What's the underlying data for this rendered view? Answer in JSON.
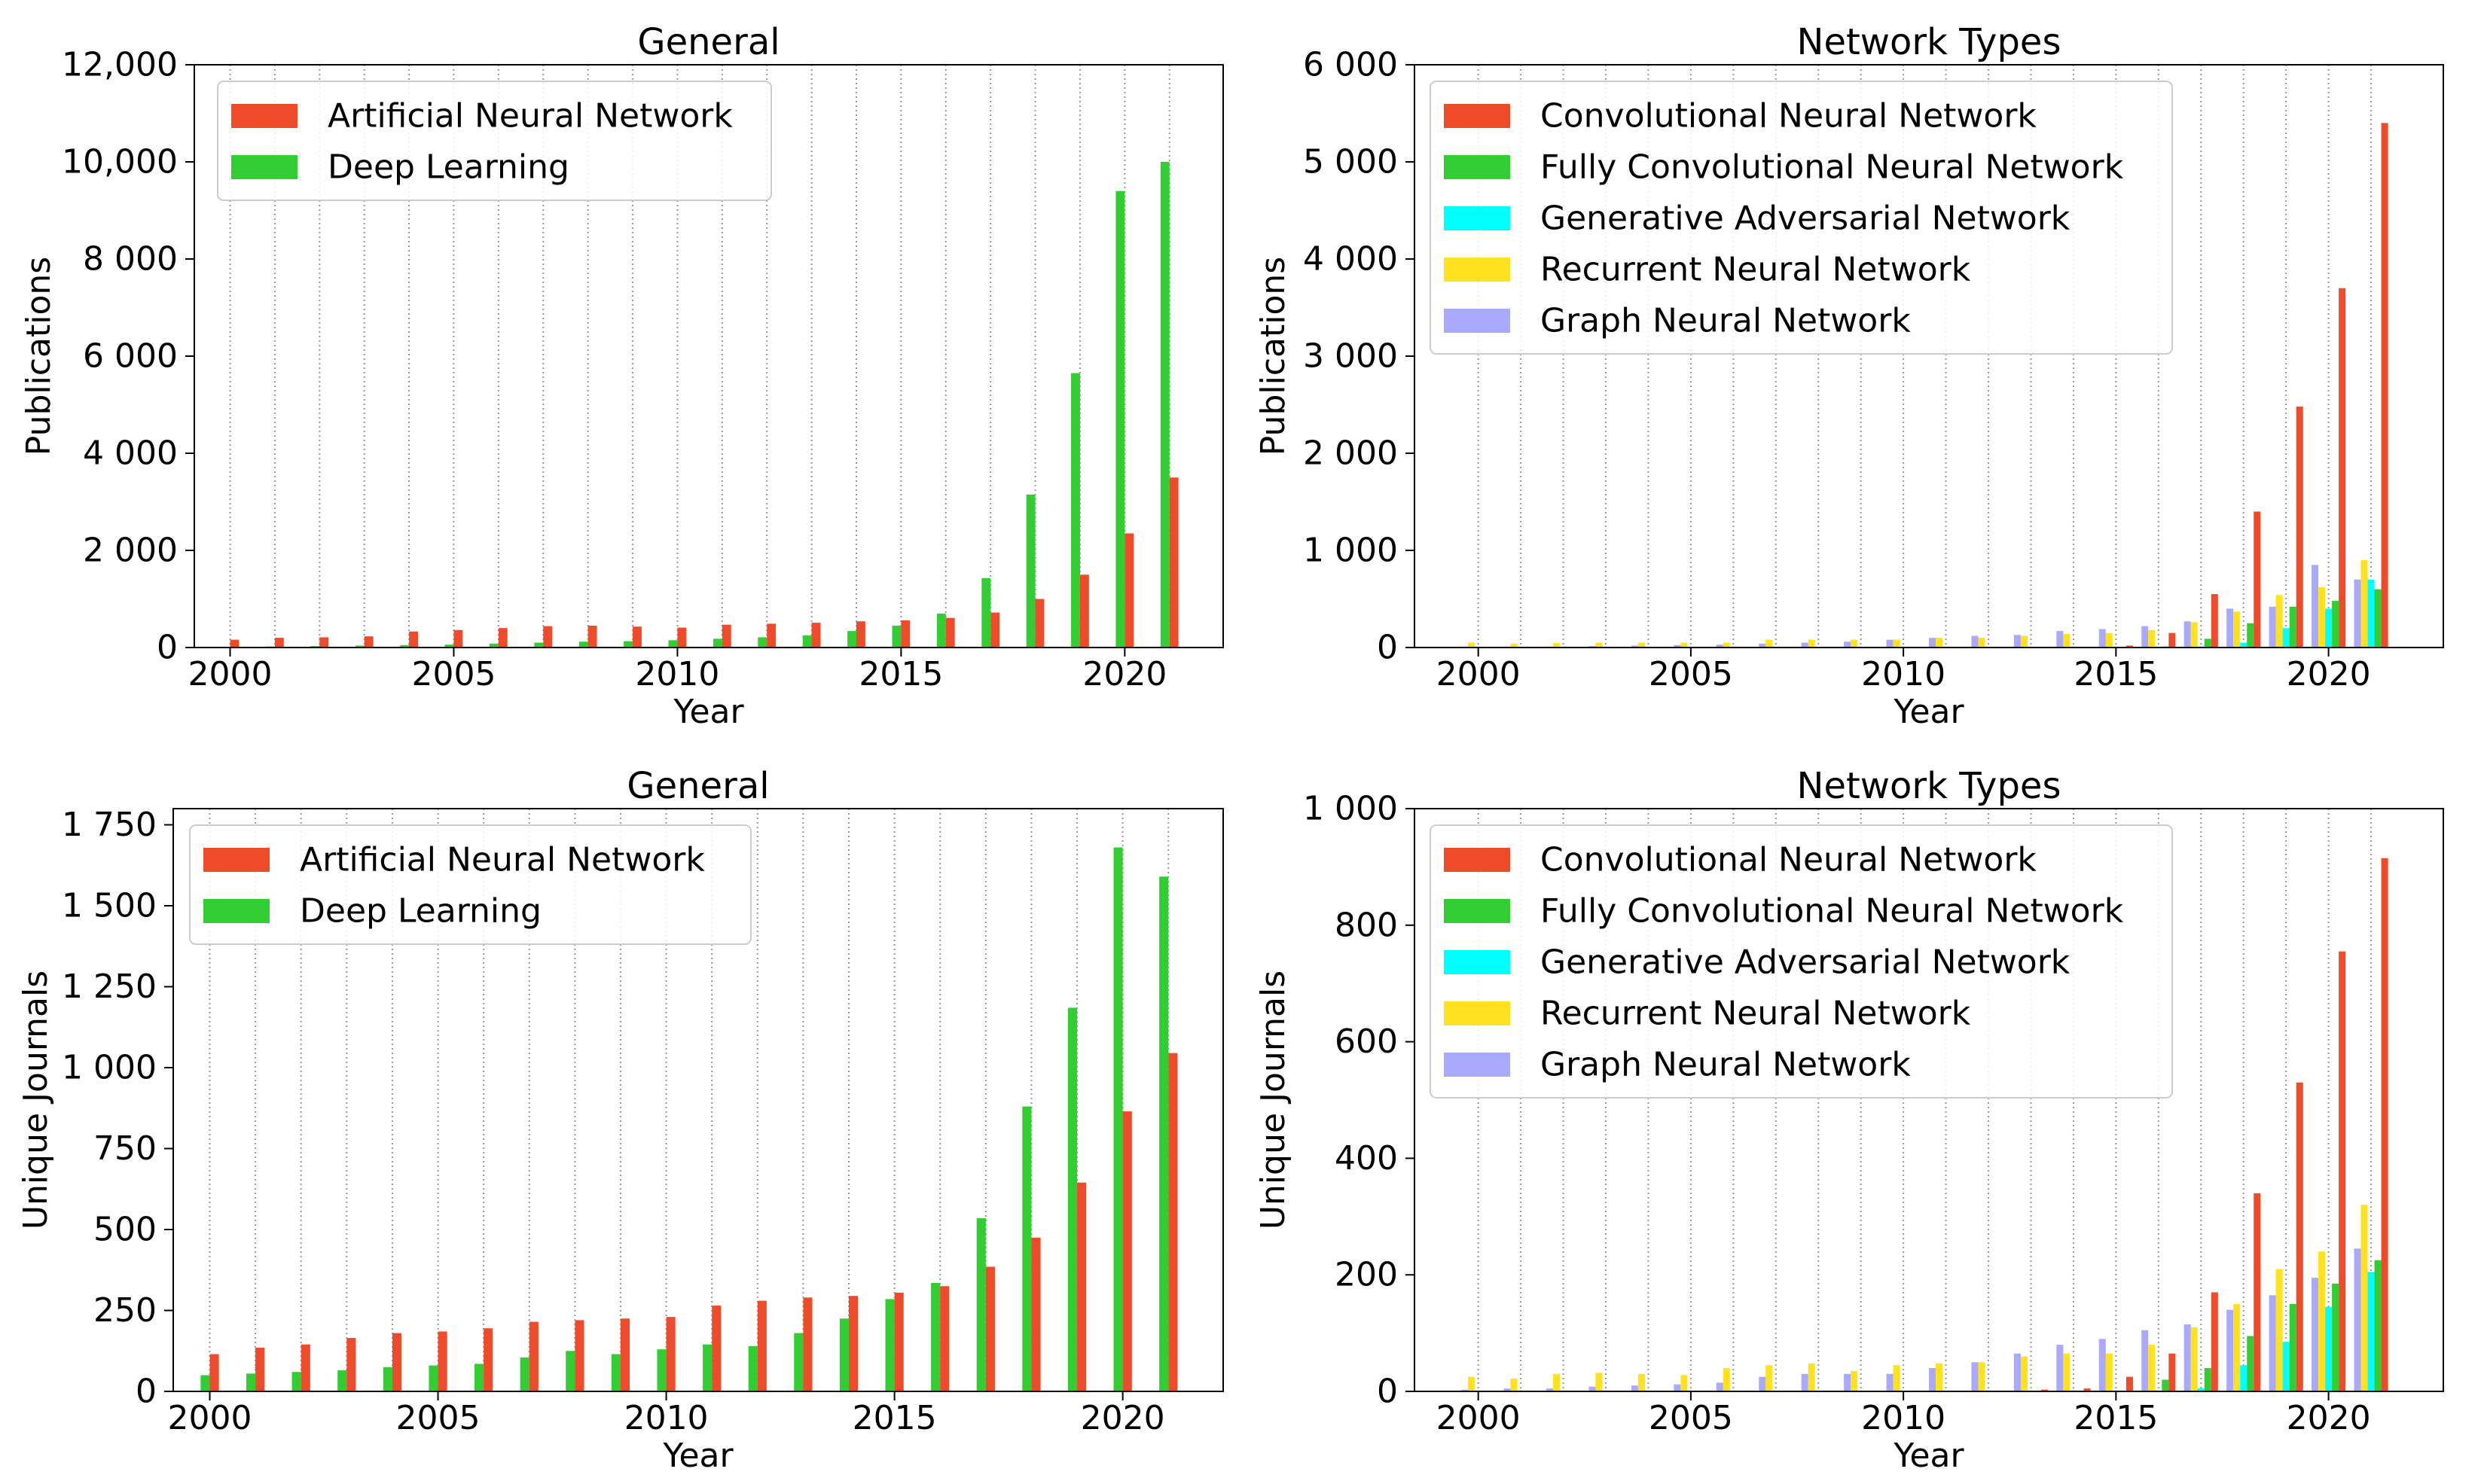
{
  "colors": {
    "Artificial Neural Network": "#EE4B2B",
    "Deep Learning": "#32CD32",
    "Convolutional Neural Network": "#EE4B2B",
    "Fully Convolutional Neural Network": "#32CD32",
    "Generative Adversarial Network": "#00FFFF",
    "Recurrent Neural Network": "#FFE11F",
    "Graph Neural Network": "#A9A9FF"
  },
  "chart_data": [
    {
      "type": "bar",
      "title": "General",
      "xlabel": "Year",
      "ylabel": "Publications",
      "xlim": [
        1999.2,
        2022.2
      ],
      "ylim": [
        0,
        12000
      ],
      "yticks": [
        0,
        2000,
        4000,
        6000,
        8000,
        10000,
        12000
      ],
      "ytick_labels": [
        "0",
        "2 000",
        "4 000",
        "6 000",
        "8 000",
        "10,000",
        "12,000"
      ],
      "xticks": [
        2000,
        2005,
        2010,
        2015,
        2020
      ],
      "xtick_labels": [
        "2000",
        "2005",
        "2010",
        "2015",
        "2020"
      ],
      "years": [
        2000,
        2001,
        2002,
        2003,
        2004,
        2005,
        2006,
        2007,
        2008,
        2009,
        2010,
        2011,
        2012,
        2013,
        2014,
        2015,
        2016,
        2017,
        2018,
        2019,
        2020,
        2021
      ],
      "grid": "vertical dotted lines at each year",
      "legend": "top-left",
      "series": [
        {
          "name": "Deep Learning",
          "values": [
            10,
            20,
            30,
            40,
            50,
            60,
            80,
            100,
            120,
            130,
            150,
            180,
            210,
            250,
            340,
            450,
            700,
            1430,
            3150,
            5650,
            9400,
            10000
          ]
        },
        {
          "name": "Artificial Neural Network",
          "values": [
            160,
            200,
            210,
            230,
            330,
            360,
            400,
            440,
            450,
            430,
            410,
            470,
            490,
            510,
            540,
            560,
            610,
            720,
            1000,
            1500,
            2350,
            3500
          ]
        }
      ]
    },
    {
      "type": "bar",
      "title": "Network Types",
      "xlabel": "Year",
      "ylabel": "Publications",
      "xlim": [
        1998.5,
        2022.7
      ],
      "ylim": [
        0,
        6000
      ],
      "yticks": [
        0,
        1000,
        2000,
        3000,
        4000,
        5000,
        6000
      ],
      "ytick_labels": [
        "0",
        "1 000",
        "2 000",
        "3 000",
        "4 000",
        "5 000",
        "6 000"
      ],
      "xticks": [
        2000,
        2005,
        2010,
        2015,
        2020
      ],
      "xtick_labels": [
        "2000",
        "2005",
        "2010",
        "2015",
        "2020"
      ],
      "years": [
        2000,
        2001,
        2002,
        2003,
        2004,
        2005,
        2006,
        2007,
        2008,
        2009,
        2010,
        2011,
        2012,
        2013,
        2014,
        2015,
        2016,
        2017,
        2018,
        2019,
        2020,
        2021
      ],
      "grid": "vertical dotted lines at each year",
      "legend": "top-left",
      "series": [
        {
          "name": "Graph Neural Network",
          "values": [
            10,
            10,
            10,
            15,
            20,
            25,
            30,
            40,
            50,
            60,
            80,
            100,
            120,
            130,
            170,
            190,
            220,
            270,
            400,
            420,
            850,
            700
          ]
        },
        {
          "name": "Recurrent Neural Network",
          "values": [
            50,
            40,
            45,
            50,
            50,
            50,
            50,
            80,
            80,
            80,
            80,
            100,
            100,
            120,
            140,
            150,
            180,
            260,
            370,
            540,
            620,
            900
          ]
        },
        {
          "name": "Generative Adversarial Network",
          "values": [
            0,
            0,
            0,
            0,
            0,
            0,
            0,
            0,
            0,
            0,
            0,
            0,
            0,
            0,
            0,
            0,
            0,
            10,
            50,
            200,
            400,
            700
          ]
        },
        {
          "name": "Fully Convolutional Neural Network",
          "values": [
            0,
            0,
            0,
            0,
            0,
            0,
            0,
            0,
            0,
            0,
            0,
            0,
            0,
            0,
            0,
            0,
            10,
            90,
            250,
            420,
            480,
            600
          ]
        },
        {
          "name": "Convolutional Neural Network",
          "values": [
            0,
            0,
            0,
            0,
            0,
            0,
            0,
            0,
            0,
            0,
            0,
            0,
            0,
            0,
            0,
            20,
            150,
            550,
            1400,
            2480,
            3700,
            5400
          ]
        }
      ]
    },
    {
      "type": "bar",
      "title": "General",
      "xlabel": "Year",
      "ylabel": "Unique Journals",
      "xlim": [
        1999.2,
        2022.2
      ],
      "ylim": [
        0,
        1800
      ],
      "yticks": [
        0,
        250,
        500,
        750,
        1000,
        1250,
        1500,
        1750
      ],
      "ytick_labels": [
        "0",
        "250",
        "500",
        "750",
        "1 000",
        "1 250",
        "1 500",
        "1 750"
      ],
      "xticks": [
        2000,
        2005,
        2010,
        2015,
        2020
      ],
      "xtick_labels": [
        "2000",
        "2005",
        "2010",
        "2015",
        "2020"
      ],
      "years": [
        2000,
        2001,
        2002,
        2003,
        2004,
        2005,
        2006,
        2007,
        2008,
        2009,
        2010,
        2011,
        2012,
        2013,
        2014,
        2015,
        2016,
        2017,
        2018,
        2019,
        2020,
        2021
      ],
      "grid": "vertical dotted lines at each year",
      "legend": "top-left",
      "series": [
        {
          "name": "Deep Learning",
          "values": [
            50,
            55,
            60,
            65,
            75,
            80,
            85,
            105,
            125,
            115,
            130,
            145,
            140,
            180,
            225,
            285,
            335,
            535,
            880,
            1185,
            1680,
            1590
          ]
        },
        {
          "name": "Artificial Neural Network",
          "values": [
            115,
            135,
            145,
            165,
            180,
            185,
            195,
            215,
            220,
            225,
            230,
            265,
            280,
            290,
            295,
            305,
            325,
            385,
            475,
            645,
            865,
            1045
          ]
        }
      ]
    },
    {
      "type": "bar",
      "title": "Network Types",
      "xlabel": "Year",
      "ylabel": "Unique Journals",
      "xlim": [
        1998.5,
        2022.7
      ],
      "ylim": [
        0,
        1000
      ],
      "yticks": [
        0,
        200,
        400,
        600,
        800,
        1000
      ],
      "ytick_labels": [
        "0",
        "200",
        "400",
        "600",
        "800",
        "1 000"
      ],
      "xticks": [
        2000,
        2005,
        2010,
        2015,
        2020
      ],
      "xtick_labels": [
        "2000",
        "2005",
        "2010",
        "2015",
        "2020"
      ],
      "years": [
        2000,
        2001,
        2002,
        2003,
        2004,
        2005,
        2006,
        2007,
        2008,
        2009,
        2010,
        2011,
        2012,
        2013,
        2014,
        2015,
        2016,
        2017,
        2018,
        2019,
        2020,
        2021
      ],
      "grid": "vertical dotted lines at each year",
      "legend": "top-left",
      "series": [
        {
          "name": "Graph Neural Network",
          "values": [
            3,
            5,
            5,
            8,
            10,
            12,
            15,
            25,
            30,
            30,
            30,
            40,
            50,
            65,
            80,
            90,
            105,
            115,
            140,
            165,
            195,
            245
          ]
        },
        {
          "name": "Recurrent Neural Network",
          "values": [
            25,
            22,
            30,
            32,
            30,
            28,
            40,
            45,
            48,
            35,
            45,
            48,
            50,
            60,
            65,
            65,
            80,
            110,
            150,
            210,
            240,
            320
          ]
        },
        {
          "name": "Generative Adversarial Network",
          "values": [
            0,
            0,
            0,
            0,
            0,
            0,
            0,
            0,
            0,
            0,
            0,
            0,
            0,
            0,
            0,
            0,
            0,
            5,
            45,
            85,
            145,
            205
          ]
        },
        {
          "name": "Fully Convolutional Neural Network",
          "values": [
            0,
            0,
            0,
            0,
            0,
            0,
            0,
            0,
            0,
            0,
            0,
            0,
            0,
            0,
            0,
            0,
            20,
            40,
            95,
            150,
            185,
            225
          ]
        },
        {
          "name": "Convolutional Neural Network",
          "values": [
            0,
            0,
            0,
            0,
            0,
            0,
            0,
            0,
            0,
            0,
            0,
            0,
            0,
            3,
            5,
            25,
            65,
            170,
            340,
            530,
            755,
            915
          ]
        }
      ]
    }
  ]
}
